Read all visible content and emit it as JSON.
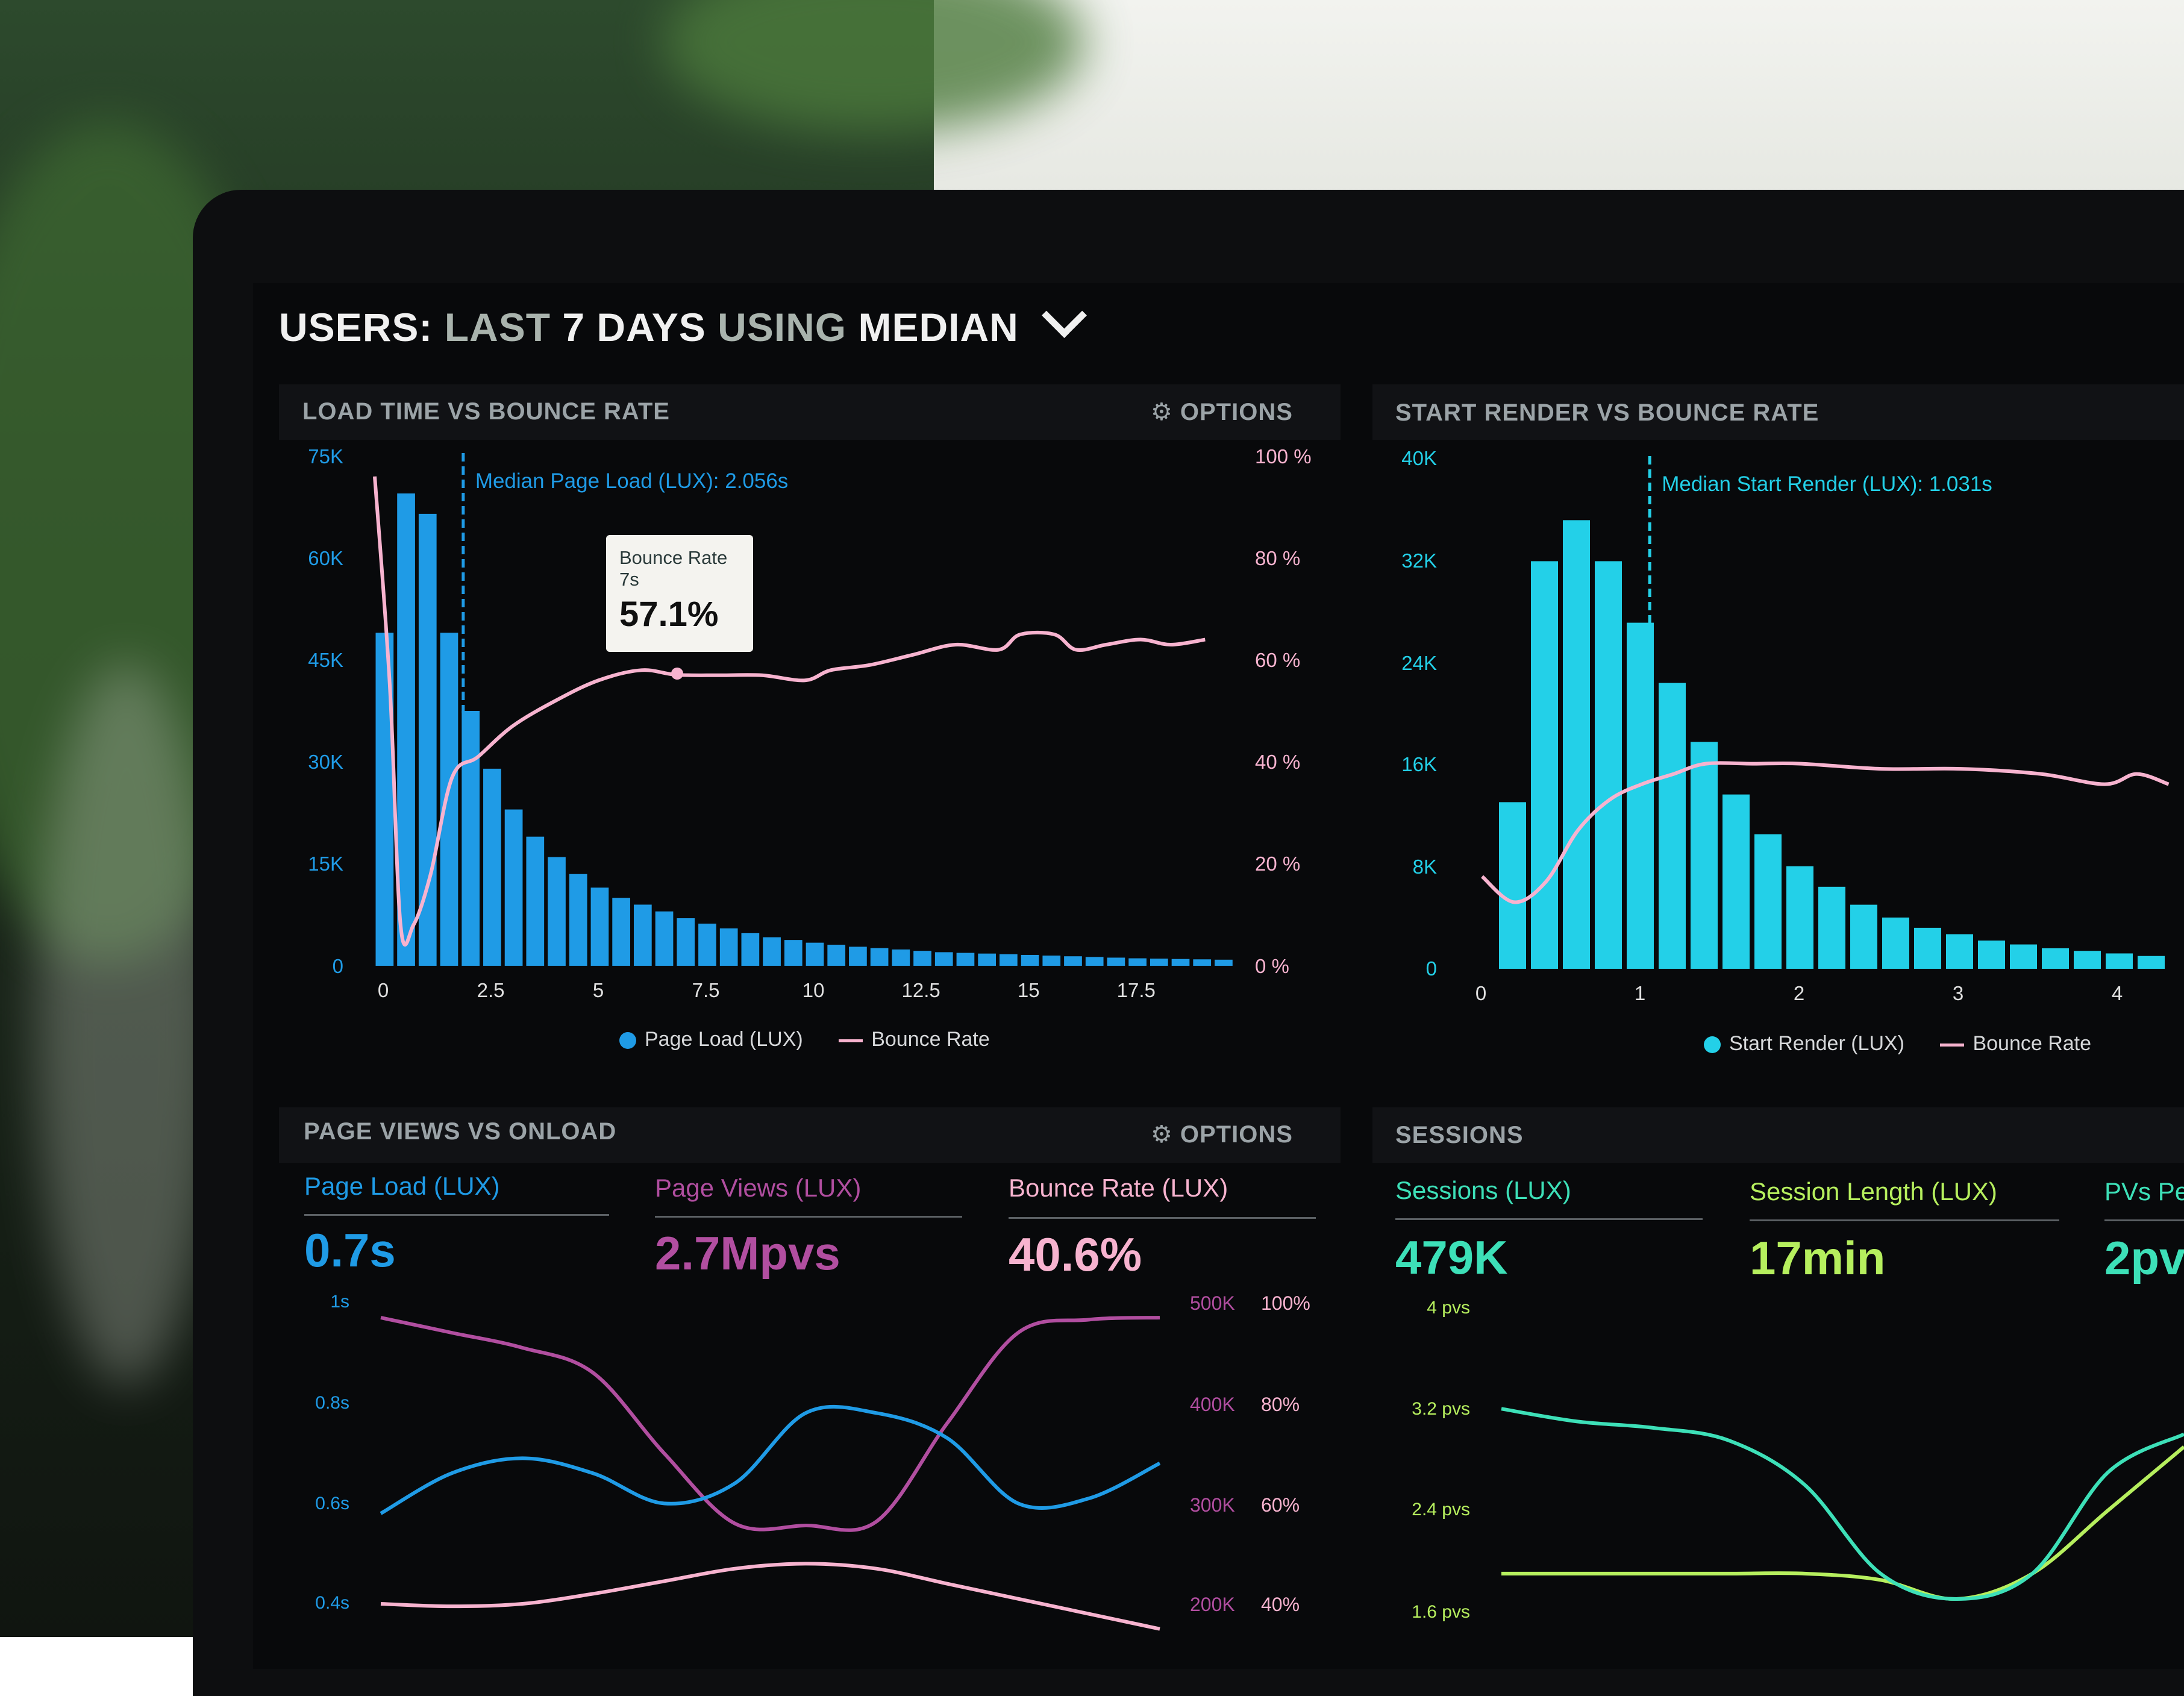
{
  "header": {
    "title_parts": [
      "USERS:",
      "LAST",
      "7 DAYS",
      "USING",
      "MEDIAN"
    ]
  },
  "colors": {
    "blue": "#1f9be6",
    "cyan": "#23d0e8",
    "pink": "#f7b3cf",
    "purple": "#b14ea0",
    "green": "#3de0b8",
    "lime": "#b6ef5e"
  },
  "panels": {
    "load_time": {
      "title": "LOAD TIME VS BOUNCE RATE",
      "options_label": "OPTIONS",
      "annotation": "Median Page Load (LUX): 2.056s",
      "tooltip": {
        "series": "Bounce Rate",
        "x": "7s",
        "value": "57.1%"
      },
      "legend": [
        "Page Load (LUX)",
        "Bounce Rate"
      ]
    },
    "start_render": {
      "title": "START RENDER VS BOUNCE RATE",
      "annotation": "Median Start Render (LUX): 1.031s",
      "legend": [
        "Start Render (LUX)",
        "Bounce Rate"
      ]
    },
    "page_views": {
      "title": "PAGE VIEWS VS ONLOAD",
      "options_label": "OPTIONS",
      "metrics": [
        {
          "label": "Page Load (LUX)",
          "value": "0.7s"
        },
        {
          "label": "Page Views (LUX)",
          "value": "2.7Mpvs"
        },
        {
          "label": "Bounce Rate (LUX)",
          "value": "40.6%"
        }
      ]
    },
    "sessions": {
      "title": "SESSIONS",
      "metrics": [
        {
          "label": "Sessions (LUX)",
          "value": "479K"
        },
        {
          "label": "Session Length (LUX)",
          "value": "17min"
        },
        {
          "label": "PVs Pe",
          "value": "2pv"
        }
      ]
    }
  },
  "chart_data": [
    {
      "type": "bar",
      "name": "load-time-vs-bounce-rate",
      "x_ticks": [
        "0",
        "2.5",
        "5",
        "7.5",
        "10",
        "12.5",
        "15",
        "17.5"
      ],
      "y_ticks_left": [
        "75K",
        "60K",
        "45K",
        "30K",
        "15K",
        "0"
      ],
      "y_ticks_right": [
        "100 %",
        "80 %",
        "60 %",
        "40 %",
        "20 %",
        "0 %"
      ],
      "xlim": [
        0,
        19.8
      ],
      "ylim": [
        0,
        75000
      ],
      "y2lim": [
        0,
        100
      ],
      "median_x": 2.056,
      "series": [
        {
          "name": "Page Load (LUX)",
          "bin_width": 0.5,
          "values": [
            49000,
            69500,
            66500,
            49000,
            37500,
            29000,
            23000,
            19000,
            16000,
            13500,
            11500,
            10000,
            9000,
            8000,
            7000,
            6200,
            5500,
            4800,
            4200,
            3800,
            3400,
            3100,
            2800,
            2600,
            2400,
            2200,
            2000,
            1900,
            1800,
            1700,
            1600,
            1500,
            1400,
            1300,
            1200,
            1100,
            1050,
            1000,
            950,
            900
          ]
        },
        {
          "name": "Bounce Rate",
          "x": [
            0,
            0.35,
            0.6,
            0.9,
            1.3,
            1.8,
            2.4,
            3.2,
            4.2,
            5.2,
            6.2,
            7.0,
            8.0,
            9.0,
            10.0,
            10.6,
            11.5,
            12.5,
            13.5,
            14.5,
            15.0,
            15.8,
            16.3,
            17.0,
            17.8,
            18.5,
            19.3
          ],
          "values": [
            96,
            55,
            8,
            8,
            18,
            37,
            41,
            47,
            52,
            56,
            58,
            57.1,
            57,
            57,
            56,
            58,
            59,
            61,
            63,
            62,
            65,
            65,
            62,
            63,
            64,
            63,
            64
          ]
        }
      ]
    },
    {
      "type": "bar",
      "name": "start-render-vs-bounce-rate",
      "x_ticks": [
        "0",
        "1",
        "2",
        "3",
        "4"
      ],
      "y_ticks_left": [
        "40K",
        "32K",
        "24K",
        "16K",
        "8K",
        "0"
      ],
      "xlim": [
        0,
        4.3
      ],
      "ylim": [
        0,
        40000
      ],
      "median_x": 1.031,
      "series": [
        {
          "name": "Start Render (LUX)",
          "bin_width": 0.2,
          "values": [
            13000,
            31800,
            35000,
            31800,
            27000,
            22300,
            17700,
            13600,
            10500,
            8000,
            6400,
            5000,
            4000,
            3200,
            2700,
            2200,
            1900,
            1600,
            1400,
            1200,
            1000,
            900
          ]
        },
        {
          "name": "Bounce Rate",
          "x": [
            0,
            0.2,
            0.4,
            0.6,
            0.8,
            1.0,
            1.2,
            1.4,
            1.7,
            2.0,
            2.5,
            3.0,
            3.5,
            3.9,
            4.1,
            4.3
          ],
          "values": [
            18,
            13,
            17,
            27,
            33,
            36,
            38,
            40,
            40,
            40,
            39,
            39,
            38,
            36,
            38,
            36
          ]
        }
      ]
    },
    {
      "type": "line",
      "name": "page-views-vs-onload",
      "y_ticks_left": [
        "1s",
        "0.8s",
        "0.6s",
        "0.4s"
      ],
      "y_ticks_mid": [
        "500K",
        "400K",
        "300K",
        "200K"
      ],
      "y_ticks_right": [
        "100%",
        "80%",
        "60%",
        "40%"
      ],
      "series": [
        {
          "name": "Page Load",
          "values": [
            0.58,
            0.66,
            0.69,
            0.66,
            0.6,
            0.64,
            0.78,
            0.78,
            0.73,
            0.6,
            0.61,
            0.68
          ]
        },
        {
          "name": "Page Views",
          "values": [
            485000,
            470000,
            455000,
            430000,
            350000,
            280000,
            278000,
            282000,
            380000,
            470000,
            483000,
            485000
          ]
        },
        {
          "name": "Bounce Rate",
          "values": [
            40,
            39.5,
            40,
            42,
            44.5,
            47,
            48,
            47,
            44,
            41,
            38,
            35
          ]
        }
      ]
    },
    {
      "type": "line",
      "name": "sessions",
      "y_ticks_left": [
        "4 pvs",
        "3.2 pvs",
        "2.4 pvs",
        "1.6 pvs"
      ],
      "series": [
        {
          "name": "Sessions",
          "values": [
            3.2,
            3.1,
            3.05,
            2.95,
            2.6,
            1.9,
            1.7,
            1.9,
            2.7,
            3.0
          ]
        },
        {
          "name": "Session Length",
          "values": [
            1.9,
            1.9,
            1.9,
            1.9,
            1.9,
            1.85,
            1.7,
            1.9,
            2.4,
            2.9
          ]
        }
      ]
    }
  ]
}
